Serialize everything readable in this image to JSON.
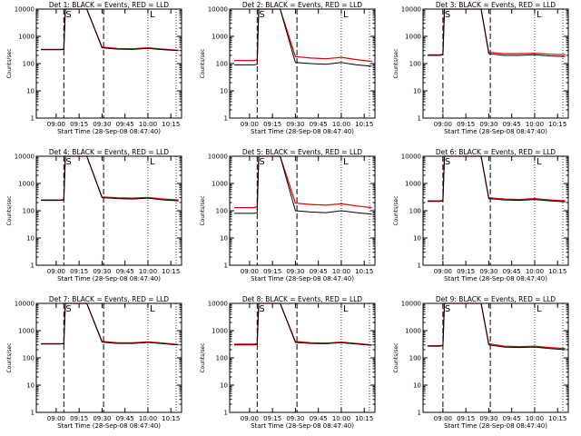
{
  "chart_data": [
    {
      "type": "line",
      "title": "Det 1: BLACK = Events, RED = LLD",
      "ylabel": "Counts/sec",
      "xlabel": "Start Time (28-Sep-08 08:47:40)",
      "yscale": "log",
      "ylim": [
        1,
        10000
      ],
      "xticks": [
        "09:00",
        "09:15",
        "09:30",
        "09:45",
        "10:00",
        "10:15"
      ],
      "markers": {
        "S": "09:05",
        "E": "09:31",
        "L": "10:00"
      },
      "x": [
        "08:50",
        "09:03",
        "09:05",
        "09:06",
        "09:16",
        "09:20",
        "09:30",
        "09:40",
        "09:50",
        "10:00",
        "10:10",
        "10:20"
      ],
      "series": [
        {
          "name": "Events",
          "color": "#000000",
          "values": [
            320,
            320,
            330,
            10000,
            10000,
            10000,
            380,
            340,
            330,
            360,
            320,
            300
          ]
        },
        {
          "name": "LLD",
          "color": "#e00000",
          "values": [
            330,
            330,
            340,
            10000,
            10000,
            10000,
            400,
            360,
            350,
            380,
            340,
            310
          ]
        }
      ]
    },
    {
      "type": "line",
      "title": "Det 2: BLACK = Events, RED = LLD",
      "ylabel": "Counts/sec",
      "xlabel": "Start Time (28-Sep-08 08:47:40)",
      "yscale": "log",
      "ylim": [
        1,
        10000
      ],
      "xticks": [
        "09:00",
        "09:15",
        "09:30",
        "09:45",
        "10:00",
        "10:15"
      ],
      "markers": {
        "S": "09:05",
        "E": "09:31",
        "L": "10:00"
      },
      "x": [
        "08:50",
        "09:03",
        "09:05",
        "09:06",
        "09:16",
        "09:20",
        "09:30",
        "09:40",
        "09:50",
        "10:00",
        "10:10",
        "10:20"
      ],
      "series": [
        {
          "name": "Events",
          "color": "#000000",
          "values": [
            90,
            90,
            95,
            10000,
            10000,
            10000,
            110,
            100,
            95,
            110,
            90,
            80
          ]
        },
        {
          "name": "LLD",
          "color": "#e00000",
          "values": [
            130,
            130,
            140,
            10000,
            10000,
            10000,
            180,
            160,
            150,
            170,
            140,
            120
          ]
        }
      ]
    },
    {
      "type": "line",
      "title": "Det 3: BLACK = Events, RED = LLD",
      "ylabel": "Counts/sec",
      "xlabel": "Start Time (28-Sep-08 08:47:40)",
      "yscale": "log",
      "ylim": [
        1,
        10000
      ],
      "xticks": [
        "09:00",
        "09:15",
        "09:30",
        "09:45",
        "10:00",
        "10:15"
      ],
      "markers": {
        "S": "09:00",
        "E": "09:31",
        "L": "10:00"
      },
      "x": [
        "08:50",
        "08:58",
        "09:00",
        "09:01",
        "09:18",
        "09:25",
        "09:30",
        "09:40",
        "09:50",
        "10:00",
        "10:10",
        "10:20"
      ],
      "series": [
        {
          "name": "Events",
          "color": "#000000",
          "values": [
            200,
            200,
            210,
            10000,
            10000,
            10000,
            230,
            200,
            200,
            210,
            190,
            180
          ]
        },
        {
          "name": "LLD",
          "color": "#e00000",
          "values": [
            210,
            210,
            220,
            10000,
            10000,
            10000,
            260,
            230,
            230,
            240,
            220,
            210
          ]
        }
      ]
    },
    {
      "type": "line",
      "title": "Det 4: BLACK = Events, RED = LLD",
      "ylabel": "Counts/sec",
      "xlabel": "Start Time (28-Sep-08 08:47:40)",
      "yscale": "log",
      "ylim": [
        1,
        10000
      ],
      "xticks": [
        "09:00",
        "09:15",
        "09:30",
        "09:45",
        "10:00",
        "10:15"
      ],
      "markers": {
        "S": "09:05",
        "E": "09:31",
        "L": "10:00"
      },
      "x": [
        "08:50",
        "09:03",
        "09:05",
        "09:06",
        "09:16",
        "09:20",
        "09:30",
        "09:40",
        "09:50",
        "10:00",
        "10:10",
        "10:20"
      ],
      "series": [
        {
          "name": "Events",
          "color": "#000000",
          "values": [
            240,
            240,
            250,
            10000,
            10000,
            10000,
            300,
            280,
            270,
            290,
            250,
            230
          ]
        },
        {
          "name": "LLD",
          "color": "#e00000",
          "values": [
            250,
            250,
            260,
            10000,
            10000,
            10000,
            320,
            300,
            290,
            310,
            270,
            250
          ]
        }
      ]
    },
    {
      "type": "line",
      "title": "Det 5: BLACK = Events, RED = LLD",
      "ylabel": "Counts/sec",
      "xlabel": "Start Time (28-Sep-08 08:47:40)",
      "yscale": "log",
      "ylim": [
        1,
        10000
      ],
      "xticks": [
        "09:00",
        "09:15",
        "09:30",
        "09:45",
        "10:00",
        "10:15"
      ],
      "markers": {
        "S": "09:05",
        "E": "09:31",
        "L": "10:00"
      },
      "x": [
        "08:50",
        "09:03",
        "09:05",
        "09:06",
        "09:16",
        "09:20",
        "09:30",
        "09:40",
        "09:50",
        "10:00",
        "10:10",
        "10:20"
      ],
      "series": [
        {
          "name": "Events",
          "color": "#000000",
          "values": [
            80,
            80,
            85,
            10000,
            10000,
            10000,
            100,
            90,
            85,
            100,
            85,
            75
          ]
        },
        {
          "name": "LLD",
          "color": "#e00000",
          "values": [
            130,
            130,
            140,
            10000,
            10000,
            10000,
            190,
            170,
            160,
            180,
            150,
            130
          ]
        }
      ]
    },
    {
      "type": "line",
      "title": "Det 6: BLACK = Events, RED = LLD",
      "ylabel": "Counts/sec",
      "xlabel": "Start Time (28-Sep-08 08:47:40)",
      "yscale": "log",
      "ylim": [
        1,
        10000
      ],
      "xticks": [
        "09:00",
        "09:15",
        "09:30",
        "09:45",
        "10:00",
        "10:15"
      ],
      "markers": {
        "S": "09:00",
        "E": "09:31",
        "L": "10:00"
      },
      "x": [
        "08:50",
        "08:58",
        "09:00",
        "09:01",
        "09:18",
        "09:25",
        "09:30",
        "09:40",
        "09:50",
        "10:00",
        "10:10",
        "10:20"
      ],
      "series": [
        {
          "name": "Events",
          "color": "#000000",
          "values": [
            220,
            220,
            230,
            10000,
            10000,
            10000,
            280,
            250,
            240,
            260,
            230,
            210
          ]
        },
        {
          "name": "LLD",
          "color": "#e00000",
          "values": [
            230,
            230,
            240,
            10000,
            10000,
            10000,
            300,
            270,
            260,
            280,
            250,
            230
          ]
        }
      ]
    },
    {
      "type": "line",
      "title": "Det 7: BLACK = Events, RED = LLD",
      "ylabel": "Counts/sec",
      "xlabel": "Start Time (28-Sep-08 08:47:40)",
      "yscale": "log",
      "ylim": [
        1,
        10000
      ],
      "xticks": [
        "09:00",
        "09:15",
        "09:30",
        "09:45",
        "10:00",
        "10:15"
      ],
      "markers": {
        "S": "09:05",
        "E": "09:31",
        "L": "10:00"
      },
      "x": [
        "08:50",
        "09:03",
        "09:05",
        "09:06",
        "09:16",
        "09:20",
        "09:30",
        "09:40",
        "09:50",
        "10:00",
        "10:10",
        "10:20"
      ],
      "series": [
        {
          "name": "Events",
          "color": "#000000",
          "values": [
            320,
            320,
            330,
            10000,
            10000,
            10000,
            380,
            340,
            340,
            370,
            330,
            300
          ]
        },
        {
          "name": "LLD",
          "color": "#e00000",
          "values": [
            330,
            330,
            340,
            10000,
            10000,
            10000,
            400,
            360,
            360,
            390,
            350,
            310
          ]
        }
      ]
    },
    {
      "type": "line",
      "title": "Det 8: BLACK = Events, RED = LLD",
      "ylabel": "Counts/sec",
      "xlabel": "Start Time (28-Sep-08 08:47:40)",
      "yscale": "log",
      "ylim": [
        1,
        10000
      ],
      "xticks": [
        "09:00",
        "09:15",
        "09:30",
        "09:45",
        "10:00",
        "10:15"
      ],
      "markers": {
        "S": "09:05",
        "E": "09:31",
        "L": "10:00"
      },
      "x": [
        "08:50",
        "09:03",
        "09:05",
        "09:06",
        "09:16",
        "09:20",
        "09:30",
        "09:40",
        "09:50",
        "10:00",
        "10:10",
        "10:20"
      ],
      "series": [
        {
          "name": "Events",
          "color": "#000000",
          "values": [
            300,
            300,
            310,
            10000,
            10000,
            10000,
            370,
            340,
            330,
            360,
            320,
            290
          ]
        },
        {
          "name": "LLD",
          "color": "#e00000",
          "values": [
            320,
            320,
            330,
            10000,
            10000,
            10000,
            400,
            360,
            350,
            380,
            340,
            300
          ]
        }
      ]
    },
    {
      "type": "line",
      "title": "Det 9: BLACK = Events, RED = LLD",
      "ylabel": "Counts/sec",
      "xlabel": "Start Time (28-Sep-08 08:47:40)",
      "yscale": "log",
      "ylim": [
        1,
        10000
      ],
      "xticks": [
        "09:00",
        "09:15",
        "09:30",
        "09:45",
        "10:00",
        "10:15"
      ],
      "markers": {
        "S": "09:00",
        "E": "09:31",
        "L": "10:00"
      },
      "x": [
        "08:50",
        "08:58",
        "09:00",
        "09:01",
        "09:18",
        "09:25",
        "09:30",
        "09:40",
        "09:50",
        "10:00",
        "10:10",
        "10:20"
      ],
      "series": [
        {
          "name": "Events",
          "color": "#000000",
          "values": [
            270,
            270,
            280,
            10000,
            10000,
            10000,
            300,
            250,
            240,
            250,
            220,
            200
          ]
        },
        {
          "name": "LLD",
          "color": "#e00000",
          "values": [
            280,
            280,
            290,
            10000,
            10000,
            10000,
            330,
            270,
            260,
            270,
            240,
            220
          ]
        }
      ]
    }
  ]
}
